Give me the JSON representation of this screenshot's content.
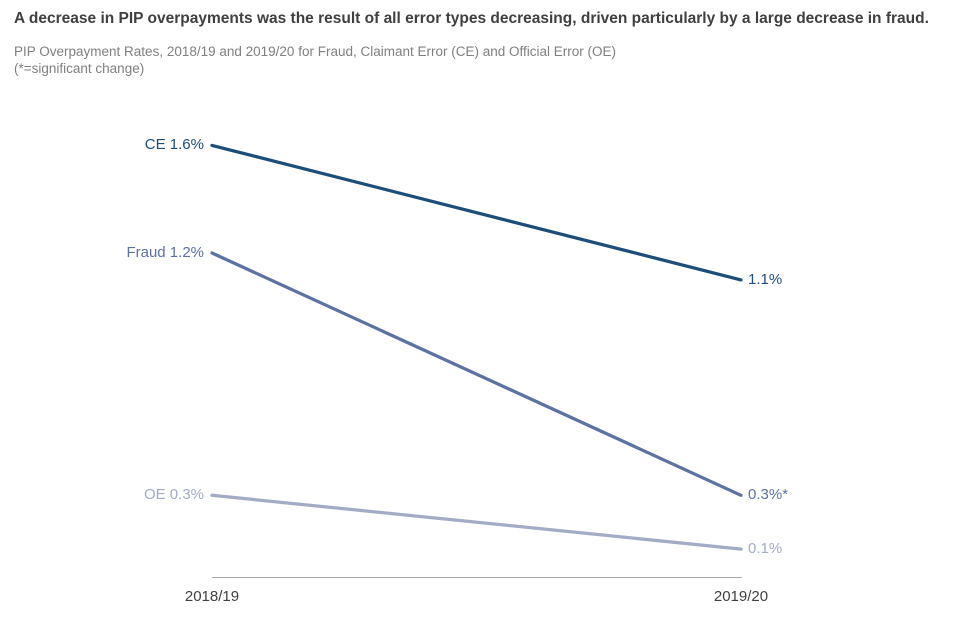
{
  "header": {
    "title": "A decrease in PIP overpayments was the result of all error types decreasing, driven particularly by a large decrease in fraud.",
    "subtitle": "PIP Overpayment Rates, 2018/19 and 2019/20 for Fraud, Claimant Error (CE) and Official Error (OE)",
    "note": "(*=significant change)"
  },
  "chart_data": {
    "type": "line",
    "variant": "slope",
    "title": "PIP Overpayment Rates, 2018/19 and 2019/20 for Fraud, Claimant Error (CE) and Official Error (OE)",
    "categories": [
      "2018/19",
      "2019/20"
    ],
    "unit": "%",
    "ylim": [
      0,
      1.75
    ],
    "grid": false,
    "legend": "inline-labels",
    "axis_line_color": "#a9a9a9",
    "axis_label_color": "#404040",
    "series": [
      {
        "name": "Claimant Error (CE)",
        "short": "CE",
        "values": [
          1.6,
          1.1
        ],
        "color": "#1d4e79",
        "start_label": "CE 1.6%",
        "end_label": "1.1%",
        "significant_change": false
      },
      {
        "name": "Fraud",
        "short": "Fraud",
        "values": [
          1.2,
          0.3
        ],
        "color": "#5b72a3",
        "start_label": "Fraud 1.2%",
        "end_label": "0.3%*",
        "significant_change": true
      },
      {
        "name": "Official Error (OE)",
        "short": "OE",
        "values": [
          0.3,
          0.1
        ],
        "color": "#a3acc6",
        "start_label": "OE 0.3%",
        "end_label": "0.1%",
        "significant_change": false
      }
    ]
  }
}
